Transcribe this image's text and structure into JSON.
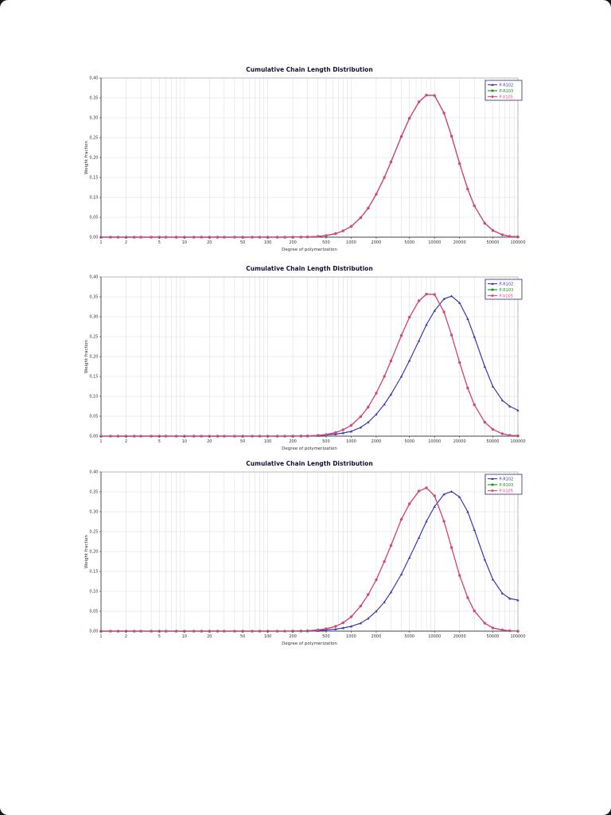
{
  "page": {
    "background": "#ffffff",
    "viewer_background": "#161616"
  },
  "chart_data": {
    "type": "line",
    "x_scale": "log",
    "xlim": [
      1,
      100000
    ],
    "ylim": [
      0,
      0.4
    ],
    "grid": true,
    "legend_position": "top-right",
    "colors": {
      "axis": "#555555",
      "grid": "#d9d9d9",
      "title": "#111133",
      "tick_text": "#333333",
      "legend_border": "#2b2b6b",
      "plot_border": "#9a9a9a"
    },
    "x": [
      1,
      1.3,
      1.6,
      2,
      2.5,
      3,
      4,
      5,
      6,
      8,
      10,
      13,
      16,
      20,
      25,
      30,
      40,
      50,
      65,
      80,
      100,
      130,
      160,
      200,
      250,
      300,
      400,
      500,
      650,
      800,
      1000,
      1300,
      1600,
      2000,
      2500,
      3000,
      4000,
      5000,
      6500,
      8000,
      10000,
      13000,
      16000,
      20000,
      25000,
      30000,
      40000,
      50000,
      65000,
      80000,
      100000
    ],
    "x_tick_values": [
      1,
      2,
      5,
      10,
      20,
      50,
      100,
      200,
      500,
      1000,
      2000,
      5000,
      10000,
      20000,
      50000,
      100000
    ],
    "x_tick_labels": [
      "1",
      "2",
      "5",
      "10",
      "20",
      "50",
      "100",
      "200",
      "500",
      "1000",
      "2000",
      "5000",
      "10000",
      "20000",
      "50000",
      "100000"
    ],
    "y_tick_values": [
      0,
      0.05,
      0.1,
      0.15,
      0.2,
      0.25,
      0.3,
      0.35,
      0.4
    ],
    "y_tick_labels": [
      "0,00",
      "0,05",
      "0,10",
      "0,15",
      "0,20",
      "0,25",
      "0,30",
      "0,35",
      "0,40"
    ],
    "charts": [
      {
        "title": "Cumulative Chain Length Distribution",
        "xlabel": "Degree of polymerization",
        "ylabel": "Weight fraction",
        "series": [
          {
            "name": "P-R102",
            "color": "#3a3ab4",
            "marker": "triangle",
            "y": [
              0,
              0,
              0,
              0,
              0,
              0,
              0,
              0,
              0,
              0,
              0,
              0,
              0,
              0,
              0,
              0,
              0,
              0,
              0,
              0,
              0,
              0,
              0.0001,
              0.0002,
              0.0004,
              0.0007,
              0.002,
              0.004,
              0.009,
              0.016,
              0.027,
              0.049,
              0.073,
              0.108,
              0.15,
              0.189,
              0.253,
              0.299,
              0.34,
              0.357,
              0.356,
              0.312,
              0.254,
              0.185,
              0.121,
              0.079,
              0.035,
              0.017,
              0.006,
              0.002,
              0.001
            ]
          },
          {
            "name": "P-R103",
            "color": "#1f8f1f",
            "marker": "square",
            "y": [
              0,
              0,
              0,
              0,
              0,
              0,
              0,
              0,
              0,
              0,
              0,
              0,
              0,
              0,
              0,
              0,
              0,
              0,
              0,
              0,
              0,
              0,
              0.0001,
              0.0002,
              0.0004,
              0.0007,
              0.002,
              0.004,
              0.009,
              0.016,
              0.027,
              0.049,
              0.073,
              0.108,
              0.15,
              0.189,
              0.253,
              0.299,
              0.34,
              0.357,
              0.356,
              0.312,
              0.254,
              0.185,
              0.121,
              0.079,
              0.035,
              0.017,
              0.006,
              0.002,
              0.001
            ]
          },
          {
            "name": "P-V105",
            "color": "#e5417c",
            "marker": "diamond",
            "y": [
              0,
              0,
              0,
              0,
              0,
              0,
              0,
              0,
              0,
              0,
              0,
              0,
              0,
              0,
              0,
              0,
              0,
              0,
              0,
              0,
              0,
              0,
              0.0001,
              0.0002,
              0.0004,
              0.0007,
              0.002,
              0.004,
              0.009,
              0.016,
              0.027,
              0.049,
              0.073,
              0.108,
              0.15,
              0.189,
              0.253,
              0.299,
              0.34,
              0.357,
              0.356,
              0.312,
              0.254,
              0.185,
              0.121,
              0.079,
              0.035,
              0.017,
              0.006,
              0.002,
              0.001
            ]
          }
        ]
      },
      {
        "title": "Cumulative Chain Length Distribution",
        "xlabel": "Degree of polymerization",
        "ylabel": "Weight fraction",
        "series": [
          {
            "name": "P-R102",
            "color": "#3a3ab4",
            "marker": "triangle",
            "y": [
              0,
              0,
              0,
              0,
              0,
              0,
              0,
              0,
              0,
              0,
              0,
              0,
              0,
              0,
              0,
              0,
              0,
              0,
              0,
              0,
              0,
              0,
              0,
              0,
              0,
              0,
              0.001,
              0.003,
              0.005,
              0.008,
              0.012,
              0.022,
              0.035,
              0.055,
              0.08,
              0.105,
              0.15,
              0.19,
              0.24,
              0.28,
              0.315,
              0.345,
              0.352,
              0.335,
              0.295,
              0.25,
              0.175,
              0.125,
              0.09,
              0.075,
              0.065
            ]
          },
          {
            "name": "P-R103",
            "color": "#1f8f1f",
            "marker": "square",
            "y": [
              0,
              0,
              0,
              0,
              0,
              0,
              0,
              0,
              0,
              0,
              0,
              0,
              0,
              0,
              0,
              0,
              0,
              0,
              0,
              0,
              0,
              0,
              0.0001,
              0.0002,
              0.0004,
              0.0007,
              0.002,
              0.004,
              0.009,
              0.016,
              0.027,
              0.049,
              0.073,
              0.108,
              0.15,
              0.189,
              0.253,
              0.299,
              0.34,
              0.357,
              0.356,
              0.312,
              0.254,
              0.185,
              0.121,
              0.079,
              0.035,
              0.017,
              0.006,
              0.002,
              0.001
            ]
          },
          {
            "name": "P-V105",
            "color": "#e5417c",
            "marker": "diamond",
            "y": [
              0,
              0,
              0,
              0,
              0,
              0,
              0,
              0,
              0,
              0,
              0,
              0,
              0,
              0,
              0,
              0,
              0,
              0,
              0,
              0,
              0,
              0,
              0.0001,
              0.0002,
              0.0004,
              0.0007,
              0.002,
              0.004,
              0.009,
              0.016,
              0.027,
              0.049,
              0.073,
              0.108,
              0.15,
              0.189,
              0.253,
              0.299,
              0.34,
              0.357,
              0.356,
              0.312,
              0.254,
              0.185,
              0.121,
              0.079,
              0.035,
              0.017,
              0.006,
              0.002,
              0.001
            ]
          }
        ]
      },
      {
        "title": "Cumulative Chain Length Distribution",
        "xlabel": "Degree of polymerization",
        "ylabel": "Weight fraction",
        "series": [
          {
            "name": "P-R102",
            "color": "#3a3ab4",
            "marker": "triangle",
            "y": [
              0,
              0,
              0,
              0,
              0,
              0,
              0,
              0,
              0,
              0,
              0,
              0,
              0,
              0,
              0,
              0,
              0,
              0,
              0,
              0,
              0,
              0,
              0,
              0,
              0,
              0,
              0.001,
              0.003,
              0.005,
              0.008,
              0.012,
              0.02,
              0.032,
              0.05,
              0.073,
              0.098,
              0.143,
              0.185,
              0.235,
              0.276,
              0.313,
              0.344,
              0.351,
              0.337,
              0.3,
              0.255,
              0.18,
              0.13,
              0.095,
              0.082,
              0.078
            ]
          },
          {
            "name": "P-R103",
            "color": "#1f8f1f",
            "marker": "square",
            "y": [
              0,
              0,
              0,
              0,
              0,
              0,
              0,
              0,
              0,
              0,
              0,
              0,
              0,
              0,
              0,
              0,
              0,
              0,
              0,
              0,
              0,
              0,
              0.0001,
              0.0003,
              0.0006,
              0.001,
              0.003,
              0.006,
              0.012,
              0.021,
              0.036,
              0.063,
              0.092,
              0.129,
              0.175,
              0.215,
              0.281,
              0.32,
              0.352,
              0.36,
              0.34,
              0.276,
              0.21,
              0.14,
              0.084,
              0.051,
              0.02,
              0.008,
              0.003,
              0.001,
              0
            ]
          },
          {
            "name": "P-V105",
            "color": "#e5417c",
            "marker": "diamond",
            "y": [
              0,
              0,
              0,
              0,
              0,
              0,
              0,
              0,
              0,
              0,
              0,
              0,
              0,
              0,
              0,
              0,
              0,
              0,
              0,
              0,
              0,
              0,
              0.0001,
              0.0003,
              0.0006,
              0.001,
              0.003,
              0.006,
              0.012,
              0.021,
              0.036,
              0.063,
              0.092,
              0.129,
              0.175,
              0.215,
              0.281,
              0.32,
              0.352,
              0.36,
              0.34,
              0.276,
              0.21,
              0.14,
              0.084,
              0.051,
              0.02,
              0.008,
              0.003,
              0.001,
              0
            ]
          }
        ]
      }
    ]
  }
}
